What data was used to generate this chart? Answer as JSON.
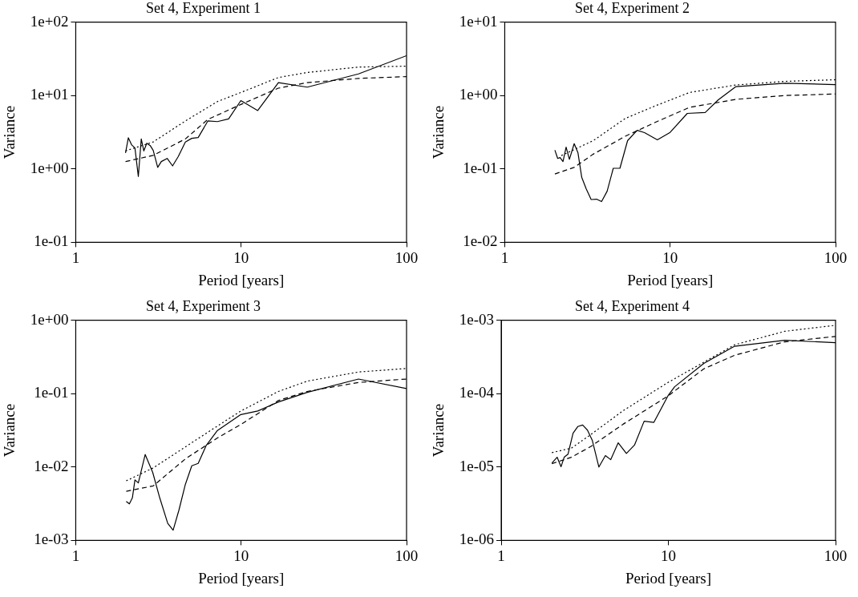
{
  "chart_data": [
    {
      "type": "line",
      "title": "Set 4, Experiment 1",
      "xlabel": "Period [years]",
      "ylabel": "Variance",
      "log": "xy",
      "grid": false,
      "legend": false,
      "marker": "none",
      "xlim": [
        1,
        100
      ],
      "ylim": [
        0.1,
        100
      ],
      "xticks": [
        1,
        10,
        100
      ],
      "yticks": [
        {
          "value": 0.1,
          "label": "1e-01"
        },
        {
          "value": 1,
          "label": "1e+00"
        },
        {
          "value": 10,
          "label": "1e+01"
        },
        {
          "value": 100,
          "label": "1e+02"
        }
      ],
      "series": [
        {
          "color": "#000000",
          "line_style": "solid",
          "x": [
            2.0,
            2.08,
            2.18,
            2.28,
            2.39,
            2.49,
            2.58,
            2.69,
            2.82,
            2.94,
            3.13,
            3.29,
            3.57,
            3.85,
            4.17,
            4.6,
            5.03,
            5.5,
            6.29,
            7.19,
            8.4,
            9.96,
            12.6,
            16.8,
            25.1,
            51.2,
            100
          ],
          "values": [
            1.65,
            2.66,
            2.12,
            1.93,
            0.79,
            2.56,
            1.76,
            2.24,
            2.08,
            1.79,
            1.05,
            1.26,
            1.39,
            1.1,
            1.48,
            2.33,
            2.61,
            2.68,
            4.5,
            4.41,
            4.8,
            8.53,
            6.25,
            15.0,
            13.0,
            19.7,
            34.9
          ]
        },
        {
          "color": "#000000",
          "line_style": "dotted",
          "x": [
            2.0,
            2.94,
            4.6,
            7.19,
            9.96,
            16.8,
            25.1,
            51.2,
            100
          ],
          "values": [
            1.76,
            2.33,
            4.5,
            8.28,
            11.0,
            17.6,
            20.6,
            24.4,
            25.1
          ]
        },
        {
          "color": "#000000",
          "line_style": "dashed",
          "x": [
            2.0,
            2.94,
            4.6,
            6.29,
            9.96,
            16.8,
            25.1,
            51.2,
            100
          ],
          "values": [
            1.26,
            1.53,
            2.56,
            4.72,
            7.55,
            12.6,
            15.0,
            17.1,
            18.1
          ]
        }
      ]
    },
    {
      "type": "line",
      "title": "Set 4, Experiment 2",
      "xlabel": "Period [years]",
      "ylabel": "Variance",
      "log": "xy",
      "grid": false,
      "legend": false,
      "marker": "none",
      "xlim": [
        1,
        100
      ],
      "ylim": [
        0.01,
        10
      ],
      "xticks": [
        1,
        10,
        100
      ],
      "yticks": [
        {
          "value": 0.01,
          "label": "1e-02"
        },
        {
          "value": 0.1,
          "label": "1e-01"
        },
        {
          "value": 1,
          "label": "1e+00"
        },
        {
          "value": 10,
          "label": "1e+01"
        }
      ],
      "series": [
        {
          "color": "#000000",
          "line_style": "solid",
          "x": [
            2.01,
            2.09,
            2.16,
            2.25,
            2.35,
            2.46,
            2.63,
            2.77,
            2.92,
            3.11,
            3.33,
            3.59,
            3.85,
            4.16,
            4.53,
            4.97,
            5.53,
            6.32,
            7.0,
            8.37,
            10.0,
            12.7,
            16.3,
            19.5,
            24.9,
            49.7,
            100
          ],
          "values": [
            0.18,
            0.139,
            0.143,
            0.126,
            0.198,
            0.135,
            0.221,
            0.167,
            0.077,
            0.0535,
            0.0383,
            0.0387,
            0.0359,
            0.0497,
            0.102,
            0.102,
            0.243,
            0.336,
            0.312,
            0.249,
            0.315,
            0.571,
            0.588,
            0.869,
            1.32,
            1.47,
            1.41
          ]
        },
        {
          "color": "#000000",
          "line_style": "dotted",
          "x": [
            2.2,
            3.43,
            5.36,
            8.37,
            13.1,
            24.9,
            49.7,
            100
          ],
          "values": [
            0.152,
            0.243,
            0.488,
            0.742,
            1.1,
            1.39,
            1.56,
            1.64
          ]
        },
        {
          "color": "#000000",
          "line_style": "dashed",
          "x": [
            2.01,
            2.63,
            3.43,
            5.36,
            8.37,
            13.1,
            24.9,
            49.7,
            100
          ],
          "values": [
            0.0853,
            0.105,
            0.159,
            0.279,
            0.444,
            0.689,
            0.886,
            1.0,
            1.05
          ]
        }
      ]
    },
    {
      "type": "line",
      "title": "Set 4, Experiment 3",
      "xlabel": "Period [years]",
      "ylabel": "Variance",
      "log": "xy",
      "grid": false,
      "legend": false,
      "marker": "none",
      "xlim": [
        1,
        100
      ],
      "ylim": [
        0.001,
        1
      ],
      "xticks": [
        1,
        10,
        100
      ],
      "yticks": [
        {
          "value": 0.001,
          "label": "1e-03"
        },
        {
          "value": 0.01,
          "label": "1e-02"
        },
        {
          "value": 0.1,
          "label": "1e-01"
        },
        {
          "value": 1,
          "label": "1e+00"
        }
      ],
      "series": [
        {
          "color": "#000000",
          "line_style": "solid",
          "x": [
            2.02,
            2.11,
            2.2,
            2.28,
            2.39,
            2.63,
            2.92,
            3.22,
            3.6,
            3.88,
            4.21,
            4.6,
            5.03,
            5.5,
            6.15,
            7.19,
            9.96,
            12.6,
            16.8,
            25.1,
            51.2,
            100
          ],
          "values": [
            0.0034,
            0.00315,
            0.0038,
            0.00667,
            0.00608,
            0.0148,
            0.00845,
            0.0038,
            0.00171,
            0.00138,
            0.00261,
            0.0058,
            0.0104,
            0.0112,
            0.0197,
            0.0315,
            0.0518,
            0.058,
            0.0769,
            0.104,
            0.158,
            0.117
          ]
        },
        {
          "color": "#000000",
          "line_style": "dotted",
          "x": [
            2.02,
            2.94,
            4.6,
            7.19,
            9.96,
            16.8,
            25.1,
            51.2,
            100
          ],
          "values": [
            0.00649,
            0.00972,
            0.0188,
            0.0362,
            0.058,
            0.107,
            0.148,
            0.197,
            0.22
          ]
        },
        {
          "color": "#000000",
          "line_style": "dashed",
          "x": [
            2.02,
            2.94,
            4.6,
            7.19,
            9.96,
            16.8,
            25.1,
            51.2,
            100
          ],
          "values": [
            0.00467,
            0.00553,
            0.0129,
            0.0249,
            0.038,
            0.0805,
            0.107,
            0.142,
            0.158
          ]
        }
      ]
    },
    {
      "type": "line",
      "title": "Set 4, Experiment 4",
      "xlabel": "Period [years]",
      "ylabel": "Variance",
      "log": "xy",
      "grid": false,
      "legend": false,
      "marker": "none",
      "xlim": [
        1,
        100
      ],
      "ylim": [
        1e-06,
        0.001
      ],
      "xticks": [
        1,
        10,
        100
      ],
      "yticks": [
        {
          "value": 1e-06,
          "label": "1e-06"
        },
        {
          "value": 1e-05,
          "label": "1e-05"
        },
        {
          "value": 0.0001,
          "label": "1e-04"
        },
        {
          "value": 0.001,
          "label": "1e-03"
        }
      ],
      "series": [
        {
          "color": "#000000",
          "line_style": "solid",
          "x": [
            2.01,
            2.16,
            2.28,
            2.38,
            2.51,
            2.69,
            2.87,
            3.07,
            3.28,
            3.51,
            3.84,
            4.2,
            4.52,
            5.01,
            5.61,
            6.27,
            7.16,
            8.19,
            10.0,
            10.9,
            16.3,
            24.9,
            49.7,
            100
          ],
          "values": [
            1.13e-05,
            1.36e-05,
            1.01e-05,
            1.36e-05,
            1.5e-05,
            2.89e-05,
            3.56e-05,
            3.73e-05,
            3.18e-05,
            2.29e-05,
            1e-05,
            1.43e-05,
            1.26e-05,
            2.14e-05,
            1.53e-05,
            1.99e-05,
            4.21e-05,
            4.06e-05,
            9.55e-05,
            0.000124,
            0.000258,
            0.000442,
            0.000533,
            0.000494
          ]
        },
        {
          "color": "#000000",
          "line_style": "dotted",
          "x": [
            2.01,
            2.63,
            3.43,
            5.36,
            10.0,
            16.3,
            24.9,
            49.7,
            100
          ],
          "values": [
            1.57e-05,
            1.81e-05,
            2.76e-05,
            5.85e-05,
            0.000143,
            0.000268,
            0.000463,
            0.000706,
            0.000853
          ]
        },
        {
          "color": "#000000",
          "line_style": "dashed",
          "x": [
            2.01,
            2.63,
            3.43,
            5.36,
            10.0,
            16.3,
            24.9,
            49.7,
            100
          ],
          "values": [
            1.11e-05,
            1.36e-05,
            1.9e-05,
            3.83e-05,
            9.36e-05,
            0.000218,
            0.000333,
            0.000508,
            0.000602
          ]
        }
      ]
    }
  ]
}
